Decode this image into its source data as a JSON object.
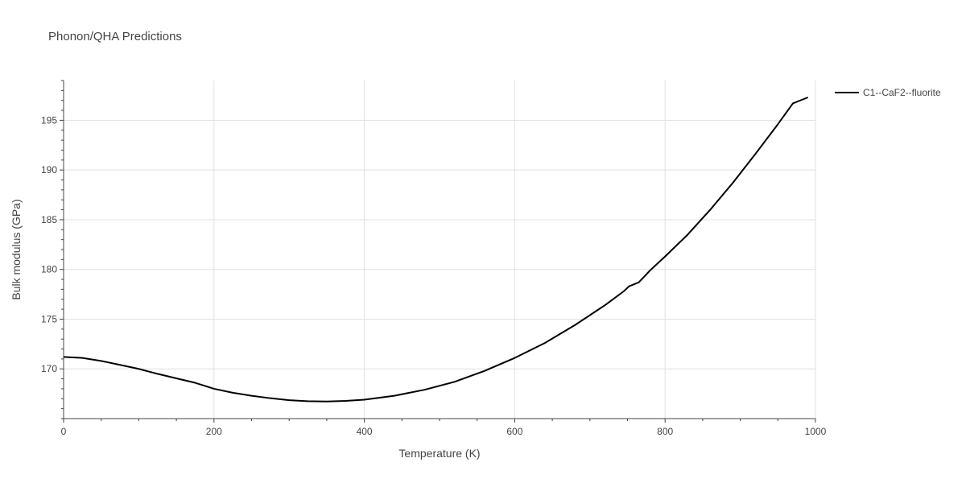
{
  "chart_data": {
    "type": "line",
    "title": "Phonon/QHA Predictions",
    "xlabel": "Temperature (K)",
    "ylabel": "Bulk modulus (GPa)",
    "xlim": [
      0,
      1000
    ],
    "ylim": [
      165,
      199
    ],
    "x_ticks": [
      0,
      200,
      400,
      600,
      800,
      1000
    ],
    "y_ticks": [
      170,
      175,
      180,
      185,
      190,
      195
    ],
    "grid": true,
    "legend_position": "top-right",
    "series": [
      {
        "name": "C1--CaF2--fluorite",
        "color": "#000000",
        "x": [
          0,
          25,
          50,
          75,
          100,
          125,
          150,
          175,
          200,
          225,
          250,
          275,
          300,
          325,
          350,
          375,
          400,
          440,
          480,
          520,
          560,
          600,
          640,
          680,
          720,
          745,
          752,
          765,
          780,
          800,
          830,
          860,
          890,
          920,
          950,
          970,
          990
        ],
        "y": [
          171.2,
          171.1,
          170.8,
          170.4,
          170.0,
          169.5,
          169.05,
          168.6,
          168.0,
          167.6,
          167.3,
          167.05,
          166.85,
          166.75,
          166.72,
          166.78,
          166.9,
          167.3,
          167.9,
          168.7,
          169.8,
          171.1,
          172.6,
          174.4,
          176.4,
          177.8,
          178.3,
          178.7,
          179.9,
          181.3,
          183.5,
          186.0,
          188.7,
          191.6,
          194.6,
          196.7,
          197.3
        ]
      }
    ]
  }
}
